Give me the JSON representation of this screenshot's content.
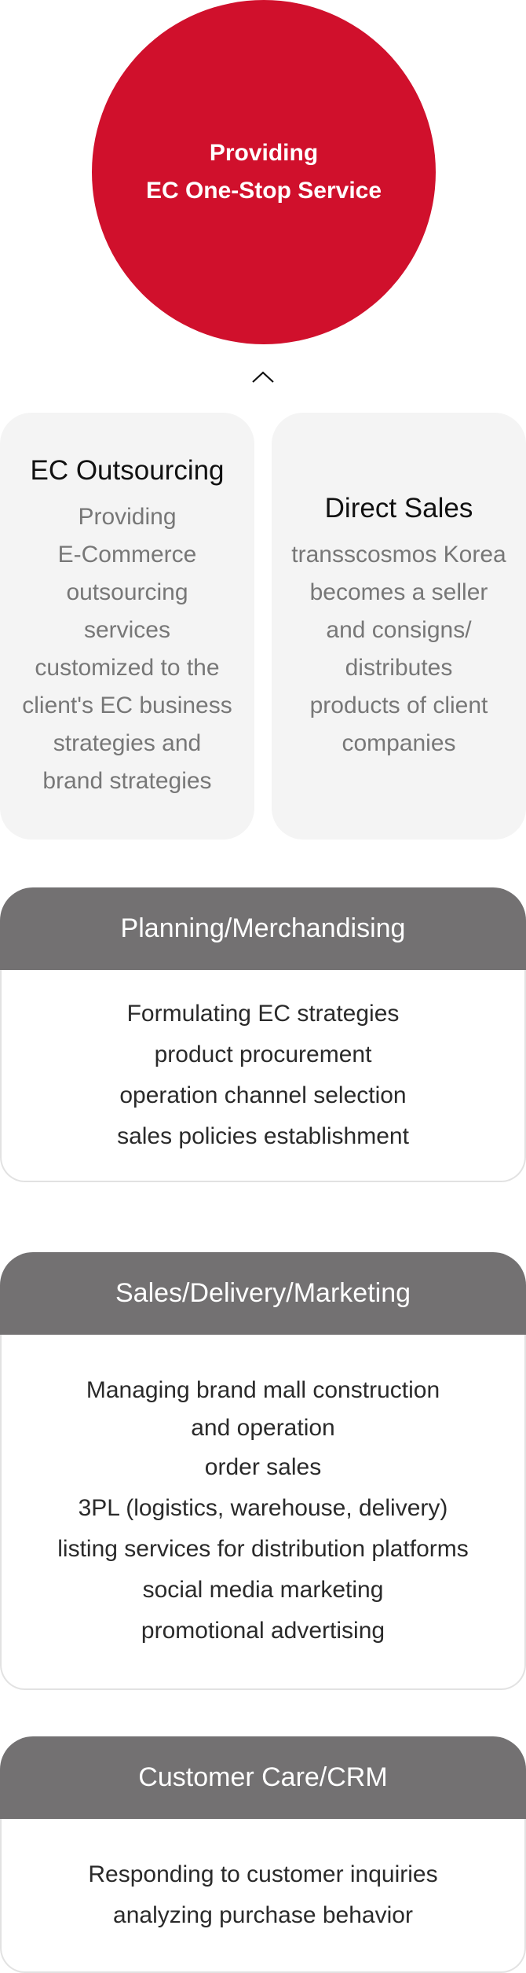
{
  "hero": {
    "line1": "Providing",
    "line2": "EC One-Stop Service",
    "color": "#d0102c"
  },
  "chevron_icon": "chevron-up-icon",
  "cards": [
    {
      "title": "EC Outsourcing",
      "lines": [
        "Providing",
        "E-Commerce",
        "outsourcing",
        "services",
        "customized to the",
        "client's EC business",
        "strategies and",
        "brand strategies"
      ]
    },
    {
      "title": "Direct Sales",
      "lines": [
        "transscosmos Korea",
        "becomes a seller",
        "and consigns/",
        "distributes",
        "products of client",
        "companies"
      ]
    }
  ],
  "sections": [
    {
      "title": "Planning/Merchandising",
      "lines": [
        "Formulating EC strategies",
        "product procurement",
        "operation channel selection",
        "sales policies establishment"
      ]
    },
    {
      "title": "Sales/Delivery/Marketing",
      "lines": [
        "Managing brand mall construction",
        "and operation",
        "order sales",
        "3PL (logistics, warehouse, delivery)",
        "listing services for distribution platforms",
        "social media marketing",
        "promotional advertising"
      ]
    },
    {
      "title": "Customer Care/CRM",
      "lines": [
        "Responding to customer inquiries",
        "analyzing purchase behavior"
      ]
    }
  ],
  "colors": {
    "header_gray": "#737172",
    "card_bg": "#f4f4f4"
  }
}
